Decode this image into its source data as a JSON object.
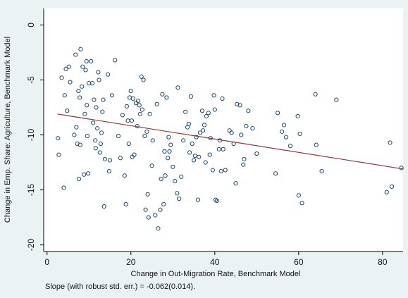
{
  "chart_data": {
    "type": "scatter",
    "y_label": "Change in Emp. Share: Agriculture, Benchmark Model",
    "x_label": "Change in Out-Migration Rate, Benchmark Model",
    "note": "Slope (with robust std. err.) = -0.062(0.014).",
    "xlim": [
      -0.8,
      84.9
    ],
    "ylim": [
      -20.6,
      1.5
    ],
    "xticks": [
      0,
      20,
      40,
      60,
      80
    ],
    "yticks": [
      -20,
      -15,
      -10,
      -5,
      0
    ],
    "grid": false,
    "series": [
      {
        "type": "scatter",
        "color": "#1a476f",
        "x": [
          2.6,
          2.8,
          3.5,
          4,
          4.2,
          4.5,
          4.8,
          5.2,
          5.5,
          6.5,
          6.8,
          7,
          7.2,
          7.5,
          7.6,
          7.8,
          7.9,
          8,
          8.3,
          8.5,
          8.8,
          9,
          9.2,
          9.4,
          9.5,
          9.6,
          9.8,
          10,
          10.5,
          10.8,
          11,
          11.2,
          11.5,
          11.6,
          11.7,
          12,
          12.2,
          12.4,
          12.6,
          12.8,
          13,
          13.2,
          13.4,
          13.6,
          13.8,
          14.5,
          14.8,
          15,
          15.5,
          16.2,
          17,
          17.5,
          18,
          18.5,
          18.8,
          19,
          19.3,
          19.5,
          19.7,
          20,
          20.2,
          20.3,
          20.5,
          20.8,
          21.2,
          21.5,
          21.7,
          22,
          22.2,
          22.5,
          22.7,
          23,
          23.3,
          23.5,
          23.8,
          24,
          24.2,
          24.5,
          25,
          25.2,
          25.8,
          26.2,
          26.5,
          27,
          27.2,
          27.5,
          27.8,
          28,
          28.2,
          28.5,
          28.8,
          29,
          29.2,
          29.5,
          30,
          30.5,
          31,
          31.2,
          31.5,
          32,
          32.5,
          33,
          33.5,
          33.8,
          34,
          34.3,
          34.6,
          35,
          35.3,
          35.6,
          36,
          36.2,
          36.5,
          37,
          37.2,
          37.5,
          37.8,
          38,
          38.5,
          38.8,
          39,
          39.5,
          39.8,
          40,
          40.2,
          40.5,
          41,
          41.2,
          41.5,
          41.8,
          42,
          42.5,
          43.5,
          44,
          44.5,
          45,
          45.3,
          46,
          46.3,
          46.8,
          47,
          47.5,
          48,
          49,
          50,
          54.5,
          55,
          56,
          56.5,
          57,
          58,
          59.8,
          60,
          60.3,
          60.8,
          64,
          64.2,
          65.5,
          69,
          81,
          81.8,
          82.2,
          84.5
        ],
        "values": [
          -10.3,
          -11.8,
          -4.8,
          -14.8,
          -6.4,
          -4,
          -7.8,
          -3.8,
          -5.2,
          -10,
          -2.7,
          -9.3,
          -10.8,
          -6,
          -14,
          -6.6,
          -10.9,
          -2.2,
          -5.6,
          -3.8,
          -13.6,
          -8.1,
          -4.1,
          -3.3,
          -7.3,
          -10.1,
          -13.5,
          -5.3,
          -3.3,
          -5.3,
          -8.9,
          -6.8,
          -10.5,
          -11.2,
          -7.5,
          -9.4,
          -4.3,
          -5,
          -11.6,
          -10.8,
          -9.8,
          -7.9,
          -6.8,
          -16.5,
          -12.2,
          -4.5,
          -13.3,
          -12.3,
          -6.4,
          -3.2,
          -10.1,
          -12.1,
          -8.2,
          -13.7,
          -16.3,
          -7.4,
          -8.7,
          -10.8,
          -6.6,
          -6,
          -8.7,
          -12,
          -6.7,
          -11.8,
          -7.1,
          -9.2,
          -6.9,
          -7.3,
          -8.1,
          -4.7,
          -7.7,
          -5,
          -10.1,
          -16.8,
          -9.7,
          -15.4,
          -17.5,
          -8.1,
          -12.8,
          -10.5,
          -17.3,
          -7.2,
          -18.5,
          -16.8,
          -14,
          -6.3,
          -16.3,
          -11.5,
          -13.7,
          -6.6,
          -12.1,
          -10.2,
          -11.5,
          -10.9,
          -12.9,
          -14.2,
          -15.3,
          -5.7,
          -15.8,
          -13.8,
          -10.5,
          -7.9,
          -9.3,
          -9,
          -11.6,
          -6.5,
          -10.8,
          -12.3,
          -11.9,
          -10.2,
          -15.9,
          -12,
          -9.8,
          -7.8,
          -9.6,
          -9.1,
          -12.5,
          -8.3,
          -8,
          -11.8,
          -10.3,
          -13.2,
          -6.4,
          -7.7,
          -15.9,
          -16,
          -11.3,
          -10.5,
          -13.3,
          -6.7,
          -11.3,
          -13.2,
          -9.6,
          -9.8,
          -10.8,
          -14.4,
          -7.2,
          -7.3,
          -10,
          -12.7,
          -12.2,
          -9.2,
          -7.8,
          -9.4,
          -11.7,
          -13.5,
          -8,
          -9.7,
          -9.1,
          -10.2,
          -11,
          -8.3,
          -15.5,
          -9.9,
          -16.2,
          -6.3,
          -10.9,
          -13.3,
          -6.8,
          -15.2,
          -10.7,
          -14.7,
          -13
        ]
      },
      {
        "type": "line",
        "color": "#90353b",
        "x": [
          2.5,
          85
        ],
        "values": [
          -8.1,
          -13.1
        ]
      }
    ]
  }
}
